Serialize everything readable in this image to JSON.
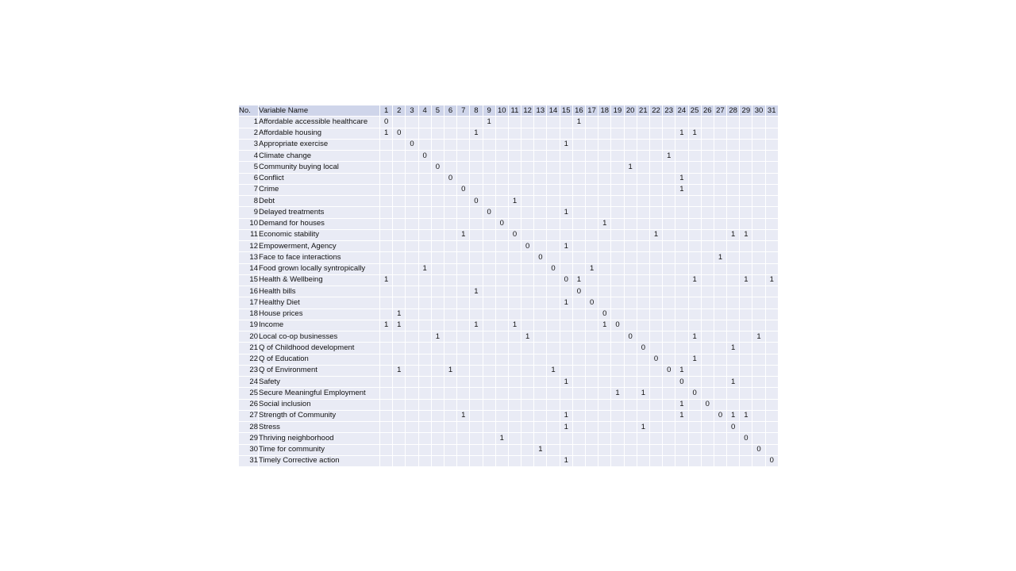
{
  "header": {
    "no_label": "No.",
    "name_label": "Variable Name",
    "columns": [
      "1",
      "2",
      "3",
      "4",
      "5",
      "6",
      "7",
      "8",
      "9",
      "10",
      "11",
      "12",
      "13",
      "14",
      "15",
      "16",
      "17",
      "18",
      "19",
      "20",
      "21",
      "22",
      "23",
      "24",
      "25",
      "26",
      "27",
      "28",
      "29",
      "30",
      "31"
    ]
  },
  "rows": [
    {
      "no": "1",
      "name": "Affordable accessible healthcare",
      "cells": {
        "1": "0",
        "9": "1",
        "16": "1"
      }
    },
    {
      "no": "2",
      "name": "Affordable housing",
      "cells": {
        "1": "1",
        "2": "0",
        "8": "1",
        "24": "1",
        "25": "1"
      }
    },
    {
      "no": "3",
      "name": "Appropriate exercise",
      "cells": {
        "3": "0",
        "15": "1"
      }
    },
    {
      "no": "4",
      "name": "Climate change",
      "cells": {
        "4": "0",
        "23": "1"
      }
    },
    {
      "no": "5",
      "name": "Community buying local",
      "cells": {
        "5": "0",
        "20": "1"
      }
    },
    {
      "no": "6",
      "name": "Conflict",
      "cells": {
        "6": "0",
        "24": "1"
      }
    },
    {
      "no": "7",
      "name": "Crime",
      "cells": {
        "7": "0",
        "24": "1"
      }
    },
    {
      "no": "8",
      "name": "Debt",
      "cells": {
        "8": "0",
        "11": "1"
      }
    },
    {
      "no": "9",
      "name": "Delayed treatments",
      "cells": {
        "9": "0",
        "15": "1"
      }
    },
    {
      "no": "10",
      "name": "Demand for houses",
      "cells": {
        "10": "0",
        "18": "1"
      }
    },
    {
      "no": "11",
      "name": "Economic stability",
      "cells": {
        "7": "1",
        "11": "0",
        "22": "1",
        "28": "1",
        "29": "1"
      }
    },
    {
      "no": "12",
      "name": "Empowerment, Agency",
      "cells": {
        "12": "0",
        "15": "1"
      }
    },
    {
      "no": "13",
      "name": "Face to face interactions",
      "cells": {
        "13": "0",
        "27": "1"
      }
    },
    {
      "no": "14",
      "name": "Food grown locally syntropically",
      "cells": {
        "4": "1",
        "14": "0",
        "17": "1"
      }
    },
    {
      "no": "15",
      "name": "Health & Wellbeing",
      "cells": {
        "1": "1",
        "15": "0",
        "16": "1",
        "25": "1",
        "29": "1",
        "31": "1"
      }
    },
    {
      "no": "16",
      "name": "Health bills",
      "cells": {
        "8": "1",
        "16": "0"
      }
    },
    {
      "no": "17",
      "name": "Healthy Diet",
      "cells": {
        "15": "1",
        "17": "0"
      }
    },
    {
      "no": "18",
      "name": "House prices",
      "cells": {
        "2": "1",
        "18": "0"
      }
    },
    {
      "no": "19",
      "name": "Income",
      "cells": {
        "1": "1",
        "2": "1",
        "8": "1",
        "11": "1",
        "18": "1",
        "19": "0"
      }
    },
    {
      "no": "20",
      "name": "Local co-op businesses",
      "cells": {
        "5": "1",
        "12": "1",
        "20": "0",
        "25": "1",
        "30": "1"
      }
    },
    {
      "no": "21",
      "name": "Q of Childhood development",
      "cells": {
        "21": "0",
        "28": "1"
      }
    },
    {
      "no": "22",
      "name": "Q of Education",
      "cells": {
        "22": "0",
        "25": "1"
      }
    },
    {
      "no": "23",
      "name": "Q of Environment",
      "cells": {
        "2": "1",
        "6": "1",
        "14": "1",
        "23": "0",
        "24": "1"
      }
    },
    {
      "no": "24",
      "name": "Safety",
      "cells": {
        "15": "1",
        "24": "0",
        "28": "1"
      }
    },
    {
      "no": "25",
      "name": "Secure Meaningful Employment",
      "cells": {
        "19": "1",
        "21": "1",
        "25": "0"
      }
    },
    {
      "no": "26",
      "name": "Social inclusion",
      "cells": {
        "24": "1",
        "26": "0"
      }
    },
    {
      "no": "27",
      "name": "Strength of Community",
      "cells": {
        "7": "1",
        "15": "1",
        "24": "1",
        "27": "0",
        "28": "1",
        "29": "1"
      }
    },
    {
      "no": "28",
      "name": "Stress",
      "cells": {
        "15": "1",
        "21": "1",
        "28": "0"
      }
    },
    {
      "no": "29",
      "name": "Thriving neighborhood",
      "cells": {
        "10": "1",
        "29": "0"
      }
    },
    {
      "no": "30",
      "name": "Time for community",
      "cells": {
        "13": "1",
        "30": "0"
      }
    },
    {
      "no": "31",
      "name": "Timely Corrective action",
      "cells": {
        "15": "1",
        "31": "0"
      }
    }
  ]
}
